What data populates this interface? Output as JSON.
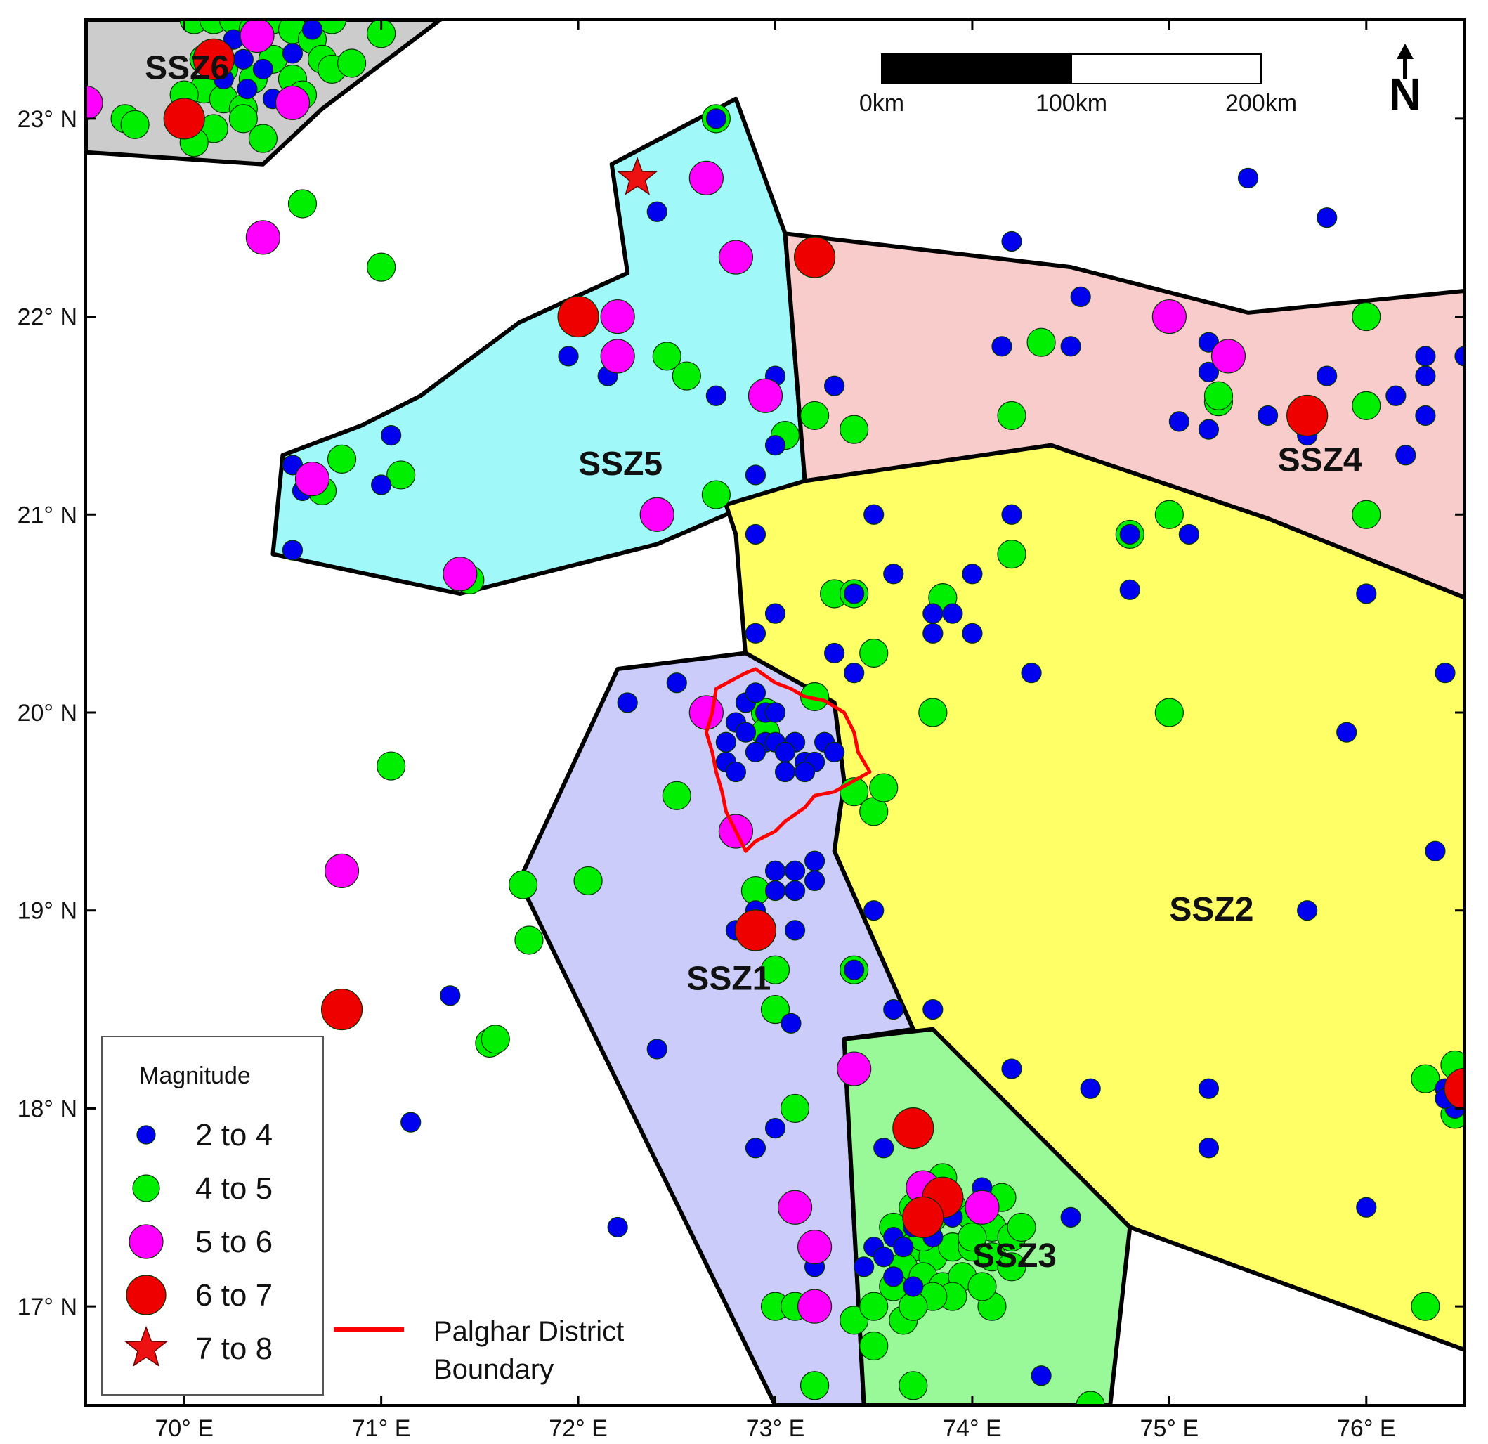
{
  "map": {
    "lon_range": [
      69.5,
      76.5
    ],
    "lat_range": [
      16.5,
      23.5
    ]
  },
  "axes": {
    "x_ticks": [
      {
        "value": 70,
        "label": "70° E"
      },
      {
        "value": 71,
        "label": "71° E"
      },
      {
        "value": 72,
        "label": "72° E"
      },
      {
        "value": 73,
        "label": "73° E"
      },
      {
        "value": 74,
        "label": "74° E"
      },
      {
        "value": 75,
        "label": "75° E"
      },
      {
        "value": 76,
        "label": "76° E"
      }
    ],
    "y_ticks": [
      {
        "value": 23,
        "label": "23° N"
      },
      {
        "value": 22,
        "label": "22° N"
      },
      {
        "value": 21,
        "label": "21° N"
      },
      {
        "value": 20,
        "label": "20° N"
      },
      {
        "value": 19,
        "label": "19° N"
      },
      {
        "value": 18,
        "label": "18° N"
      },
      {
        "value": 17,
        "label": "17° N"
      }
    ]
  },
  "zones": [
    {
      "name": "SSZ6",
      "color": "#cccccc",
      "label_at": [
        69.8,
        23.2
      ],
      "polygon": [
        [
          69.5,
          23.5
        ],
        [
          71.3,
          23.5
        ],
        [
          70.7,
          23.05
        ],
        [
          70.4,
          22.77
        ],
        [
          69.5,
          22.83
        ]
      ]
    },
    {
      "name": "SSZ5",
      "color": "#a0f8f8",
      "label_at": [
        72.0,
        21.2
      ],
      "polygon": [
        [
          72.17,
          22.77
        ],
        [
          72.8,
          23.1
        ],
        [
          73.05,
          22.42
        ],
        [
          73.15,
          21.17
        ],
        [
          72.4,
          20.85
        ],
        [
          71.4,
          20.6
        ],
        [
          70.45,
          20.8
        ],
        [
          70.5,
          21.3
        ],
        [
          70.9,
          21.45
        ],
        [
          71.2,
          21.6
        ],
        [
          71.7,
          21.97
        ],
        [
          72.25,
          22.22
        ]
      ]
    },
    {
      "name": "SSZ4",
      "color": "#f9cccc",
      "label_at": [
        75.55,
        21.22
      ],
      "polygon": [
        [
          73.05,
          22.42
        ],
        [
          74.5,
          22.25
        ],
        [
          75.4,
          22.02
        ],
        [
          76.5,
          22.13
        ],
        [
          76.5,
          20.58
        ],
        [
          75.5,
          20.98
        ],
        [
          74.4,
          21.35
        ],
        [
          73.15,
          21.17
        ]
      ]
    },
    {
      "name": "SSZ2",
      "color": "#ffff66",
      "label_at": [
        75.0,
        18.95
      ],
      "polygon": [
        [
          73.15,
          21.17
        ],
        [
          74.4,
          21.35
        ],
        [
          75.5,
          20.98
        ],
        [
          76.5,
          20.58
        ],
        [
          76.5,
          16.78
        ],
        [
          74.8,
          17.4
        ],
        [
          73.7,
          18.4
        ],
        [
          73.3,
          19.3
        ],
        [
          73.35,
          19.65
        ],
        [
          73.3,
          20.05
        ],
        [
          72.85,
          20.28
        ],
        [
          72.8,
          20.9
        ],
        [
          72.75,
          21.05
        ]
      ]
    },
    {
      "name": "SSZ1",
      "color": "#ccccfa",
      "label_at": [
        72.55,
        18.6
      ],
      "polygon": [
        [
          72.2,
          20.22
        ],
        [
          72.85,
          20.3
        ],
        [
          73.3,
          20.05
        ],
        [
          73.35,
          19.65
        ],
        [
          73.3,
          19.3
        ],
        [
          73.7,
          18.4
        ],
        [
          73.35,
          18.35
        ],
        [
          73.45,
          16.5
        ],
        [
          73.0,
          16.5
        ],
        [
          71.7,
          19.15
        ]
      ]
    },
    {
      "name": "SSZ3",
      "color": "#99f999",
      "label_at": [
        74.0,
        17.2
      ],
      "polygon": [
        [
          73.35,
          18.35
        ],
        [
          73.8,
          18.4
        ],
        [
          74.8,
          17.4
        ],
        [
          74.7,
          16.5
        ],
        [
          73.45,
          16.5
        ]
      ]
    }
  ],
  "palghar_boundary": {
    "color": "#ff0000",
    "polygon": [
      [
        72.7,
        20.12
      ],
      [
        72.85,
        20.2
      ],
      [
        72.9,
        20.22
      ],
      [
        73.0,
        20.15
      ],
      [
        73.08,
        20.12
      ],
      [
        73.15,
        20.08
      ],
      [
        73.25,
        20.06
      ],
      [
        73.35,
        20.0
      ],
      [
        73.4,
        19.9
      ],
      [
        73.42,
        19.8
      ],
      [
        73.48,
        19.7
      ],
      [
        73.3,
        19.6
      ],
      [
        73.2,
        19.58
      ],
      [
        73.15,
        19.52
      ],
      [
        73.05,
        19.45
      ],
      [
        73.0,
        19.4
      ],
      [
        72.9,
        19.35
      ],
      [
        72.85,
        19.3
      ],
      [
        72.8,
        19.4
      ],
      [
        72.75,
        19.5
      ],
      [
        72.73,
        19.6
      ],
      [
        72.7,
        19.7
      ],
      [
        72.68,
        19.8
      ],
      [
        72.65,
        19.9
      ],
      [
        72.68,
        20.0
      ]
    ]
  },
  "magnitude_classes": [
    {
      "key": "m2",
      "label": "2  to  4",
      "color": "#0000ee",
      "shape": "circle"
    },
    {
      "key": "m4",
      "label": "4  to  5",
      "color": "#00ee00",
      "shape": "circle"
    },
    {
      "key": "m5",
      "label": "5  to  6",
      "color": "#ff00ff",
      "shape": "circle"
    },
    {
      "key": "m6",
      "label": "6  to  7",
      "color": "#ee0000",
      "shape": "circle"
    },
    {
      "key": "m7",
      "label": "7  to  8",
      "color": "#ee1111",
      "shape": "star"
    }
  ],
  "events": {
    "m2": [
      [
        70.15,
        23.35
      ],
      [
        70.25,
        23.4
      ],
      [
        70.3,
        23.3
      ],
      [
        70.2,
        23.2
      ],
      [
        70.4,
        23.25
      ],
      [
        70.55,
        23.33
      ],
      [
        70.65,
        23.45
      ],
      [
        70.45,
        23.1
      ],
      [
        70.32,
        23.15
      ],
      [
        72.4,
        22.53
      ],
      [
        71.05,
        21.4
      ],
      [
        71.0,
        21.15
      ],
      [
        70.55,
        21.25
      ],
      [
        70.6,
        21.12
      ],
      [
        70.55,
        20.82
      ],
      [
        71.95,
        21.8
      ],
      [
        72.15,
        21.7
      ],
      [
        72.2,
        21.8
      ],
      [
        72.7,
        21.6
      ],
      [
        73.0,
        21.7
      ],
      [
        73.0,
        21.35
      ],
      [
        72.9,
        21.2
      ],
      [
        73.3,
        21.65
      ],
      [
        72.7,
        23.0
      ],
      [
        74.2,
        22.38
      ],
      [
        74.15,
        21.85
      ],
      [
        74.5,
        21.85
      ],
      [
        74.55,
        22.1
      ],
      [
        75.05,
        21.47
      ],
      [
        75.2,
        21.43
      ],
      [
        75.2,
        21.72
      ],
      [
        75.2,
        21.87
      ],
      [
        75.4,
        22.7
      ],
      [
        75.8,
        22.5
      ],
      [
        75.8,
        21.7
      ],
      [
        75.5,
        21.5
      ],
      [
        75.7,
        21.4
      ],
      [
        76.2,
        21.3
      ],
      [
        76.15,
        21.6
      ],
      [
        76.3,
        21.7
      ],
      [
        76.3,
        21.5
      ],
      [
        76.3,
        21.8
      ],
      [
        76.5,
        21.8
      ],
      [
        73.5,
        21.0
      ],
      [
        74.2,
        21.0
      ],
      [
        74.8,
        20.9
      ],
      [
        75.1,
        20.9
      ],
      [
        74.8,
        20.62
      ],
      [
        73.6,
        20.7
      ],
      [
        74.0,
        20.7
      ],
      [
        73.4,
        20.6
      ],
      [
        73.8,
        20.5
      ],
      [
        73.9,
        20.5
      ],
      [
        73.8,
        20.4
      ],
      [
        74.0,
        20.4
      ],
      [
        73.0,
        20.5
      ],
      [
        72.9,
        20.4
      ],
      [
        72.9,
        20.9
      ],
      [
        73.3,
        20.3
      ],
      [
        73.4,
        20.2
      ],
      [
        74.3,
        20.2
      ],
      [
        76.0,
        20.6
      ],
      [
        76.4,
        20.2
      ],
      [
        75.9,
        19.9
      ],
      [
        76.35,
        19.3
      ],
      [
        75.7,
        19.0
      ],
      [
        72.5,
        20.15
      ],
      [
        72.25,
        20.05
      ],
      [
        72.85,
        20.05
      ],
      [
        72.9,
        20.1
      ],
      [
        72.95,
        20.0
      ],
      [
        73.0,
        20.0
      ],
      [
        72.8,
        19.95
      ],
      [
        72.85,
        19.9
      ],
      [
        72.75,
        19.85
      ],
      [
        72.95,
        19.85
      ],
      [
        73.0,
        19.85
      ],
      [
        73.1,
        19.85
      ],
      [
        73.25,
        19.85
      ],
      [
        73.3,
        19.8
      ],
      [
        72.75,
        19.75
      ],
      [
        72.9,
        19.8
      ],
      [
        73.05,
        19.8
      ],
      [
        73.15,
        19.75
      ],
      [
        73.2,
        19.75
      ],
      [
        73.05,
        19.7
      ],
      [
        73.15,
        19.7
      ],
      [
        72.8,
        19.7
      ],
      [
        73.0,
        19.2
      ],
      [
        73.1,
        19.2
      ],
      [
        73.2,
        19.25
      ],
      [
        73.2,
        19.15
      ],
      [
        73.0,
        19.1
      ],
      [
        73.1,
        19.1
      ],
      [
        72.9,
        19.0
      ],
      [
        72.9,
        18.9
      ],
      [
        72.8,
        18.9
      ],
      [
        73.1,
        18.9
      ],
      [
        73.4,
        18.7
      ],
      [
        73.5,
        19.0
      ],
      [
        73.6,
        18.5
      ],
      [
        73.8,
        18.5
      ],
      [
        73.08,
        18.43
      ],
      [
        72.4,
        18.3
      ],
      [
        71.35,
        18.57
      ],
      [
        71.15,
        17.93
      ],
      [
        72.2,
        17.4
      ],
      [
        74.2,
        18.2
      ],
      [
        74.6,
        18.1
      ],
      [
        75.2,
        18.1
      ],
      [
        75.2,
        17.8
      ],
      [
        72.9,
        17.8
      ],
      [
        73.0,
        17.9
      ],
      [
        73.55,
        17.8
      ],
      [
        76.0,
        17.5
      ],
      [
        76.4,
        18.1
      ],
      [
        76.5,
        18.05
      ],
      [
        76.45,
        18.0
      ],
      [
        76.4,
        18.05
      ],
      [
        73.5,
        17.3
      ],
      [
        73.55,
        17.25
      ],
      [
        73.6,
        17.35
      ],
      [
        73.65,
        17.3
      ],
      [
        73.7,
        17.4
      ],
      [
        73.75,
        17.4
      ],
      [
        73.8,
        17.35
      ],
      [
        73.8,
        17.45
      ],
      [
        73.6,
        17.15
      ],
      [
        73.7,
        17.1
      ],
      [
        73.85,
        17.5
      ],
      [
        74.05,
        17.6
      ],
      [
        74.5,
        17.45
      ],
      [
        73.9,
        17.45
      ],
      [
        73.45,
        17.2
      ],
      [
        73.2,
        17.2
      ],
      [
        74.35,
        16.65
      ]
    ],
    "m4": [
      [
        70.05,
        23.5
      ],
      [
        70.15,
        23.5
      ],
      [
        70.25,
        23.5
      ],
      [
        70.35,
        23.45
      ],
      [
        70.45,
        23.5
      ],
      [
        70.55,
        23.45
      ],
      [
        70.65,
        23.4
      ],
      [
        70.75,
        23.5
      ],
      [
        70.1,
        23.3
      ],
      [
        70.2,
        23.25
      ],
      [
        70.35,
        23.2
      ],
      [
        70.45,
        23.3
      ],
      [
        70.55,
        23.2
      ],
      [
        70.7,
        23.3
      ],
      [
        70.75,
        23.25
      ],
      [
        70.85,
        23.28
      ],
      [
        70.1,
        23.15
      ],
      [
        70.2,
        23.1
      ],
      [
        70.3,
        23.05
      ],
      [
        70.0,
        23.12
      ],
      [
        70.6,
        23.12
      ],
      [
        69.7,
        23.0
      ],
      [
        69.75,
        22.97
      ],
      [
        70.15,
        22.95
      ],
      [
        70.3,
        23.0
      ],
      [
        70.05,
        22.88
      ],
      [
        70.4,
        22.9
      ],
      [
        71.0,
        23.43
      ],
      [
        70.6,
        22.57
      ],
      [
        71.0,
        22.25
      ],
      [
        70.7,
        21.12
      ],
      [
        70.8,
        21.28
      ],
      [
        71.1,
        21.2
      ],
      [
        72.45,
        21.8
      ],
      [
        72.55,
        21.7
      ],
      [
        72.7,
        21.1
      ],
      [
        73.05,
        21.4
      ],
      [
        72.7,
        23.0
      ],
      [
        71.45,
        20.67
      ],
      [
        73.2,
        21.5
      ],
      [
        73.4,
        21.43
      ],
      [
        74.2,
        21.5
      ],
      [
        74.35,
        21.87
      ],
      [
        75.0,
        22.0
      ],
      [
        75.25,
        21.57
      ],
      [
        75.25,
        21.6
      ],
      [
        76.0,
        21.55
      ],
      [
        76.0,
        22.0
      ],
      [
        76.0,
        21.0
      ],
      [
        75.0,
        21.0
      ],
      [
        74.8,
        20.9
      ],
      [
        74.2,
        20.8
      ],
      [
        73.3,
        20.6
      ],
      [
        73.4,
        20.6
      ],
      [
        73.5,
        20.3
      ],
      [
        73.85,
        20.58
      ],
      [
        73.8,
        20.0
      ],
      [
        75.0,
        20.0
      ],
      [
        73.2,
        20.08
      ],
      [
        72.95,
        20.0
      ],
      [
        72.95,
        19.9
      ],
      [
        72.5,
        19.58
      ],
      [
        73.4,
        19.6
      ],
      [
        73.5,
        19.5
      ],
      [
        73.55,
        19.62
      ],
      [
        72.9,
        19.1
      ],
      [
        71.72,
        19.13
      ],
      [
        72.05,
        19.15
      ],
      [
        71.75,
        18.85
      ],
      [
        71.05,
        19.73
      ],
      [
        71.55,
        18.33
      ],
      [
        71.58,
        18.35
      ],
      [
        73.0,
        18.7
      ],
      [
        73.0,
        18.5
      ],
      [
        73.4,
        18.7
      ],
      [
        73.1,
        18.0
      ],
      [
        73.2,
        17.3
      ],
      [
        73.0,
        17.0
      ],
      [
        73.1,
        17.0
      ],
      [
        73.2,
        16.6
      ],
      [
        73.2,
        16.6
      ],
      [
        73.4,
        16.93
      ],
      [
        73.5,
        17.0
      ],
      [
        73.5,
        16.8
      ],
      [
        73.65,
        16.93
      ],
      [
        73.7,
        16.6
      ],
      [
        74.1,
        17.0
      ],
      [
        74.6,
        16.5
      ],
      [
        76.3,
        17.0
      ],
      [
        76.45,
        17.97
      ],
      [
        76.45,
        18.22
      ],
      [
        76.3,
        18.15
      ],
      [
        73.7,
        17.5
      ],
      [
        73.8,
        17.45
      ],
      [
        73.9,
        17.5
      ],
      [
        74.0,
        17.45
      ],
      [
        74.1,
        17.4
      ],
      [
        74.2,
        17.35
      ],
      [
        73.6,
        17.4
      ],
      [
        73.7,
        17.3
      ],
      [
        73.8,
        17.25
      ],
      [
        73.9,
        17.3
      ],
      [
        74.0,
        17.3
      ],
      [
        74.1,
        17.25
      ],
      [
        74.2,
        17.2
      ],
      [
        73.65,
        17.2
      ],
      [
        73.75,
        17.15
      ],
      [
        73.85,
        17.1
      ],
      [
        73.95,
        17.15
      ],
      [
        74.05,
        17.1
      ],
      [
        73.9,
        17.05
      ],
      [
        73.8,
        17.05
      ],
      [
        73.7,
        17.0
      ],
      [
        74.0,
        17.35
      ],
      [
        73.85,
        17.65
      ],
      [
        74.15,
        17.55
      ],
      [
        74.25,
        17.4
      ],
      [
        73.75,
        17.35
      ],
      [
        73.6,
        17.1
      ]
    ],
    "m5": [
      [
        69.5,
        23.08
      ],
      [
        70.37,
        23.42
      ],
      [
        70.55,
        23.08
      ],
      [
        70.4,
        22.4
      ],
      [
        72.65,
        22.7
      ],
      [
        72.8,
        22.3
      ],
      [
        72.2,
        22.0
      ],
      [
        72.2,
        21.8
      ],
      [
        72.95,
        21.6
      ],
      [
        70.65,
        21.18
      ],
      [
        72.4,
        21.0
      ],
      [
        71.4,
        20.7
      ],
      [
        75.0,
        22.0
      ],
      [
        75.3,
        21.8
      ],
      [
        72.65,
        20.0
      ],
      [
        72.8,
        19.4
      ],
      [
        70.8,
        19.2
      ],
      [
        73.4,
        18.2
      ],
      [
        73.1,
        17.5
      ],
      [
        73.2,
        17.3
      ],
      [
        73.2,
        17.0
      ],
      [
        74.05,
        17.5
      ],
      [
        73.75,
        17.6
      ]
    ],
    "m6": [
      [
        70.15,
        23.3
      ],
      [
        70.0,
        23.0
      ],
      [
        72.0,
        22.0
      ],
      [
        73.2,
        22.3
      ],
      [
        75.7,
        21.5
      ],
      [
        72.9,
        18.9
      ],
      [
        70.8,
        18.5
      ],
      [
        73.7,
        17.9
      ],
      [
        73.85,
        17.55
      ],
      [
        73.75,
        17.45
      ],
      [
        76.5,
        18.1
      ]
    ],
    "m7": [
      [
        72.3,
        22.7
      ]
    ]
  },
  "legend": {
    "title": "Magnitude",
    "boundary_label_line1": "Palghar District",
    "boundary_label_line2": "Boundary"
  },
  "scale_bar": {
    "labels": [
      "0km",
      "100km",
      "200km"
    ]
  },
  "north_arrow": {
    "label": "N"
  }
}
